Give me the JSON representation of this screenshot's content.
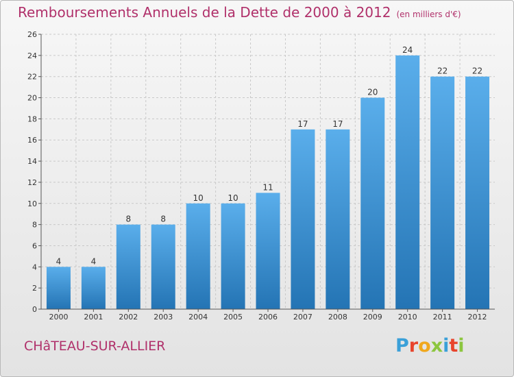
{
  "header": {
    "title": "Remboursements Annuels de la Dette de 2000 à 2012",
    "subtitle": "(en milliers d'€)"
  },
  "footer": {
    "city": "CHâTEAU-SUR-ALLIER",
    "logo_letters": [
      "P",
      "r",
      "o",
      "x",
      "i",
      "t",
      "i"
    ],
    "logo_colors": [
      "#3aa0d8",
      "#e8442c",
      "#f0a81e",
      "#8cc63f",
      "#3aa0d8",
      "#e8442c",
      "#8cc63f"
    ]
  },
  "colors": {
    "bar_top": "#5aaeeb",
    "bar_bottom": "#2474b4",
    "grid": "#c8c8c8",
    "title": "#b0306a"
  },
  "chart_data": {
    "type": "bar",
    "title": "Remboursements Annuels de la Dette de 2000 à 2012",
    "subtitle": "(en milliers d'€)",
    "xlabel": "",
    "ylabel": "",
    "categories": [
      "2000",
      "2001",
      "2002",
      "2003",
      "2004",
      "2005",
      "2006",
      "2007",
      "2008",
      "2009",
      "2010",
      "2011",
      "2012"
    ],
    "values": [
      4,
      4,
      8,
      8,
      10,
      10,
      11,
      17,
      17,
      20,
      24,
      22,
      22
    ],
    "ylim": [
      0,
      26
    ],
    "yticks": [
      0,
      2,
      4,
      6,
      8,
      10,
      12,
      14,
      16,
      18,
      20,
      22,
      24,
      26
    ],
    "grid": "horizontal dashed",
    "legend": "none"
  }
}
